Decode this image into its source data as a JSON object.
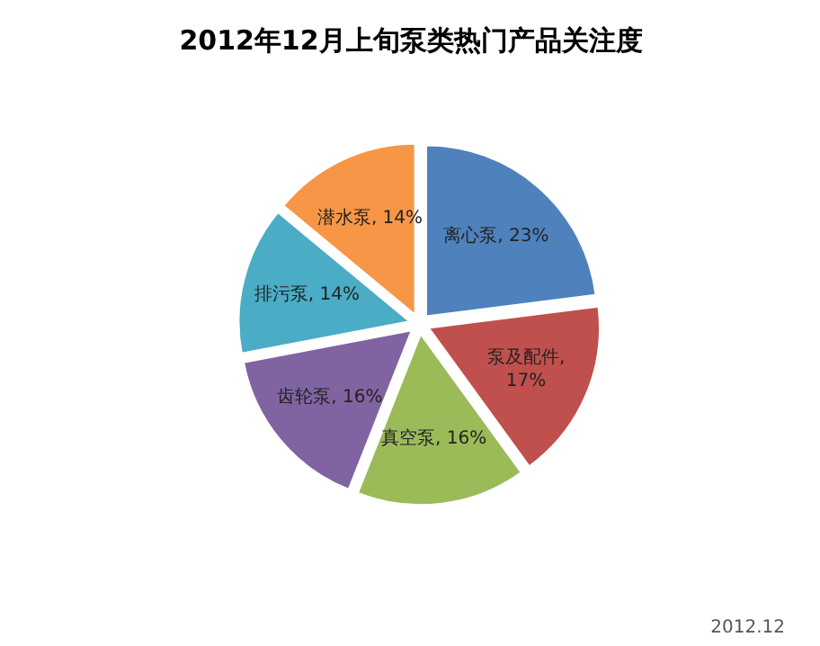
{
  "chart_data": {
    "type": "pie",
    "title": "2012年12月上旬泵类热门产品关注度",
    "categories": [
      "离心泵",
      "泵及配件",
      "真空泵",
      "齿轮泵",
      "排污泵",
      "潜水泵"
    ],
    "values": [
      23,
      17,
      16,
      16,
      14,
      14
    ],
    "value_labels": [
      ", 23%",
      ",\n17%",
      ", 16%",
      ", 16%",
      ", 14%",
      ", 14%"
    ],
    "colors": [
      "#4f81bd",
      "#c0504d",
      "#9bbb59",
      "#8064a2",
      "#4bacc6",
      "#f79646"
    ],
    "annotations": [
      "2012.12"
    ]
  }
}
